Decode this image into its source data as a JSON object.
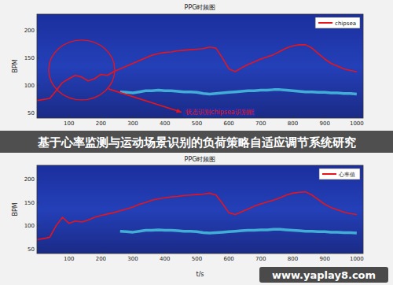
{
  "chart_data": [
    {
      "type": "line",
      "title": "PPG时频图",
      "y_label": "BPM",
      "annotation": "状态识别chipsea识别能",
      "x": [
        0,
        20,
        40,
        60,
        80,
        100,
        120,
        140,
        160,
        180,
        200,
        220,
        240,
        260,
        280,
        300,
        320,
        340,
        360,
        380,
        400,
        420,
        440,
        460,
        480,
        500,
        520,
        540,
        560,
        580,
        600,
        620,
        640,
        660,
        680,
        700,
        720,
        740,
        760,
        780,
        800,
        820,
        840,
        860,
        880,
        900,
        920,
        940,
        960,
        980,
        1000
      ],
      "series": [
        {
          "name": "chipsea",
          "color": "#e8141c",
          "values": [
            72,
            74,
            76,
            90,
            105,
            112,
            118,
            115,
            108,
            112,
            120,
            118,
            125,
            130,
            135,
            140,
            145,
            150,
            155,
            158,
            160,
            161,
            163,
            164,
            165,
            166,
            167,
            170,
            168,
            150,
            130,
            125,
            132,
            138,
            143,
            148,
            152,
            156,
            162,
            168,
            172,
            174,
            174,
            168,
            158,
            148,
            140,
            135,
            130,
            127,
            125
          ]
        },
        {
          "color": "#4fd6e8",
          "values": [
            null,
            null,
            null,
            null,
            null,
            null,
            null,
            null,
            null,
            null,
            null,
            null,
            null,
            88,
            87,
            86,
            88,
            90,
            90,
            91,
            90,
            90,
            89,
            88,
            88,
            87,
            85,
            84,
            85,
            86,
            87,
            88,
            89,
            90,
            90,
            91,
            91,
            92,
            92,
            91,
            90,
            89,
            88,
            88,
            87,
            87,
            86,
            86,
            85,
            85,
            84
          ]
        }
      ],
      "xlim": [
        0,
        1020
      ],
      "xticks": [
        100,
        200,
        300,
        400,
        500,
        600,
        700,
        800,
        900,
        1000
      ],
      "ylim": [
        40,
        230
      ],
      "yticks": [
        50,
        100,
        150,
        200
      ],
      "grid": false,
      "legend": "upper right"
    },
    {
      "type": "line",
      "title": "PPG时频图",
      "y_label": "BPM",
      "x_label": "t/s",
      "x": [
        0,
        20,
        40,
        60,
        80,
        100,
        120,
        140,
        160,
        180,
        200,
        220,
        240,
        260,
        280,
        300,
        320,
        340,
        360,
        380,
        400,
        420,
        440,
        460,
        480,
        500,
        520,
        540,
        560,
        580,
        600,
        620,
        640,
        660,
        680,
        700,
        720,
        740,
        760,
        780,
        800,
        820,
        840,
        860,
        880,
        900,
        920,
        940,
        960,
        980,
        1000
      ],
      "series": [
        {
          "name": "心率值",
          "color": "#e8141c",
          "values": [
            70,
            72,
            75,
            100,
            118,
            105,
            110,
            108,
            112,
            118,
            122,
            125,
            128,
            132,
            136,
            140,
            146,
            150,
            155,
            158,
            160,
            162,
            163,
            165,
            166,
            167,
            168,
            170,
            166,
            148,
            128,
            124,
            130,
            136,
            142,
            147,
            151,
            155,
            160,
            166,
            170,
            172,
            173,
            166,
            156,
            146,
            139,
            134,
            129,
            126,
            124
          ]
        },
        {
          "color": "#4fd6e8",
          "values": [
            null,
            null,
            null,
            null,
            null,
            null,
            null,
            null,
            null,
            null,
            null,
            null,
            null,
            88,
            87,
            86,
            88,
            90,
            90,
            91,
            90,
            90,
            89,
            88,
            88,
            87,
            85,
            84,
            85,
            86,
            87,
            88,
            89,
            90,
            90,
            91,
            91,
            92,
            92,
            91,
            90,
            89,
            88,
            88,
            87,
            87,
            86,
            86,
            85,
            85,
            84
          ]
        }
      ],
      "xlim": [
        0,
        1020
      ],
      "xticks": [
        100,
        200,
        300,
        400,
        500,
        600,
        700,
        800,
        900,
        1000
      ],
      "ylim": [
        40,
        230
      ],
      "yticks": [
        50,
        100,
        150,
        200
      ],
      "grid": false,
      "legend": "upper right"
    }
  ],
  "banner": {
    "title": "基于心率监测与运动场景识别的负荷策略自适应调节系统研究"
  },
  "watermark": {
    "text": "www.yaplay8.com"
  }
}
